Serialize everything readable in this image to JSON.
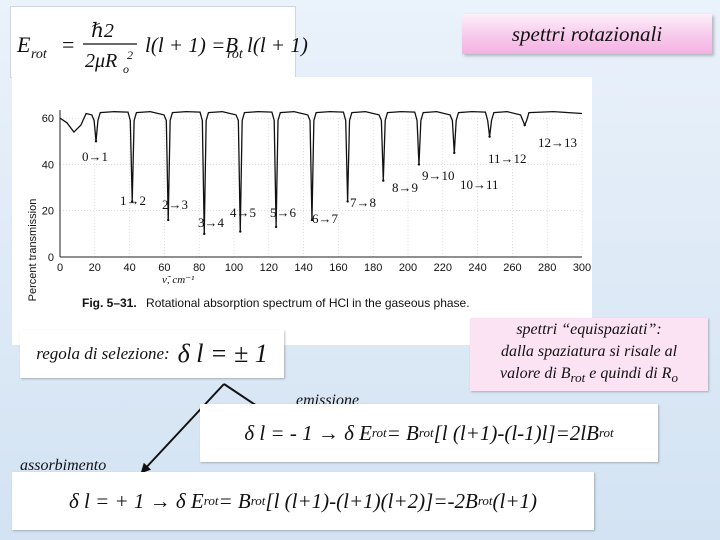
{
  "title": "spettri rotazionali",
  "formula": {
    "lhs": "E",
    "lhs_sub": "rot",
    "equals": "=",
    "numerator": "ℏ2",
    "denominator": "2μR",
    "denominator_sub": "o",
    "denominator_sup": "2",
    "middle": "l(l + 1) =B",
    "middle_sub": "rot",
    "rhs": "l(l + 1)"
  },
  "spectrum": {
    "ylabel": "Percent transmission",
    "xlabel": "ν̃, cm⁻¹",
    "yticks": [
      "60",
      "40",
      "20",
      "0"
    ],
    "xticks": [
      "0",
      "20",
      "40",
      "60",
      "80",
      "100",
      "120",
      "140",
      "160",
      "180",
      "200",
      "220",
      "240",
      "260",
      "280",
      "300"
    ],
    "caption_fig": "Fig. 5–31.",
    "caption_text": "Rotational absorption spectrum of HCl in the gaseous phase.",
    "transitions": [
      "0→1",
      "1→2",
      "2→3",
      "3→4",
      "4→5",
      "5→6",
      "6→7",
      "7→8",
      "8→9",
      "9→10",
      "10→11",
      "11→12",
      "12→13"
    ]
  },
  "chart_data": {
    "type": "line",
    "xlabel": "ν̃, cm⁻¹",
    "ylabel": "Percent transmission",
    "xlim": [
      0,
      300
    ],
    "ylim": [
      0,
      70
    ],
    "grid": true,
    "absorption_lines": [
      {
        "label": "0→1",
        "x": 20.7,
        "y": 50
      },
      {
        "label": "1→2",
        "x": 41.5,
        "y": 24
      },
      {
        "label": "2→3",
        "x": 62.2,
        "y": 16
      },
      {
        "label": "3→4",
        "x": 82.9,
        "y": 10
      },
      {
        "label": "4→5",
        "x": 103.6,
        "y": 11
      },
      {
        "label": "5→6",
        "x": 124.2,
        "y": 13
      },
      {
        "label": "6→7",
        "x": 144.8,
        "y": 16
      },
      {
        "label": "7→8",
        "x": 165.3,
        "y": 24
      },
      {
        "label": "8→9",
        "x": 185.8,
        "y": 33
      },
      {
        "label": "9→10",
        "x": 206.3,
        "y": 40
      },
      {
        "label": "10→11",
        "x": 226.6,
        "y": 45
      },
      {
        "label": "11→12",
        "x": 246.9,
        "y": 52
      },
      {
        "label": "12→13",
        "x": 267.1,
        "y": 57
      }
    ]
  },
  "selection_rule": {
    "label": "regola di selezione:",
    "equation": "δ l = ± 1"
  },
  "equispaced_note": {
    "line1": "spettri “equispaziati”:",
    "line2": "dalla spaziatura si risale al",
    "line3_pre": "valore di B",
    "line3_sub": "rot",
    "line3_mid": " e quindi di R",
    "line3_sub2": "o"
  },
  "emission": {
    "label": "emissione",
    "f1": "δ l = - 1 → δ E",
    "f1_sub": "rot",
    "f2": " = B",
    "f2_sub": "rot",
    "f3": " [l (l+1)-(l-1)l]=2lB",
    "f3_sub": "rot"
  },
  "absorption": {
    "label": "assorbimento",
    "f1": "δ l = + 1 → δ E",
    "f1_sub": "rot",
    "f2": " = B",
    "f2_sub": "rot",
    "f3": "[l (l+1)-(l+1)(l+2)]=-2B",
    "f3_sub": "rot",
    "f4": " (l+1)"
  },
  "colors": {
    "title_bg": "#f4b2e2",
    "note_bg": "#fbe3f4",
    "page_bg": "#dde9f6"
  }
}
